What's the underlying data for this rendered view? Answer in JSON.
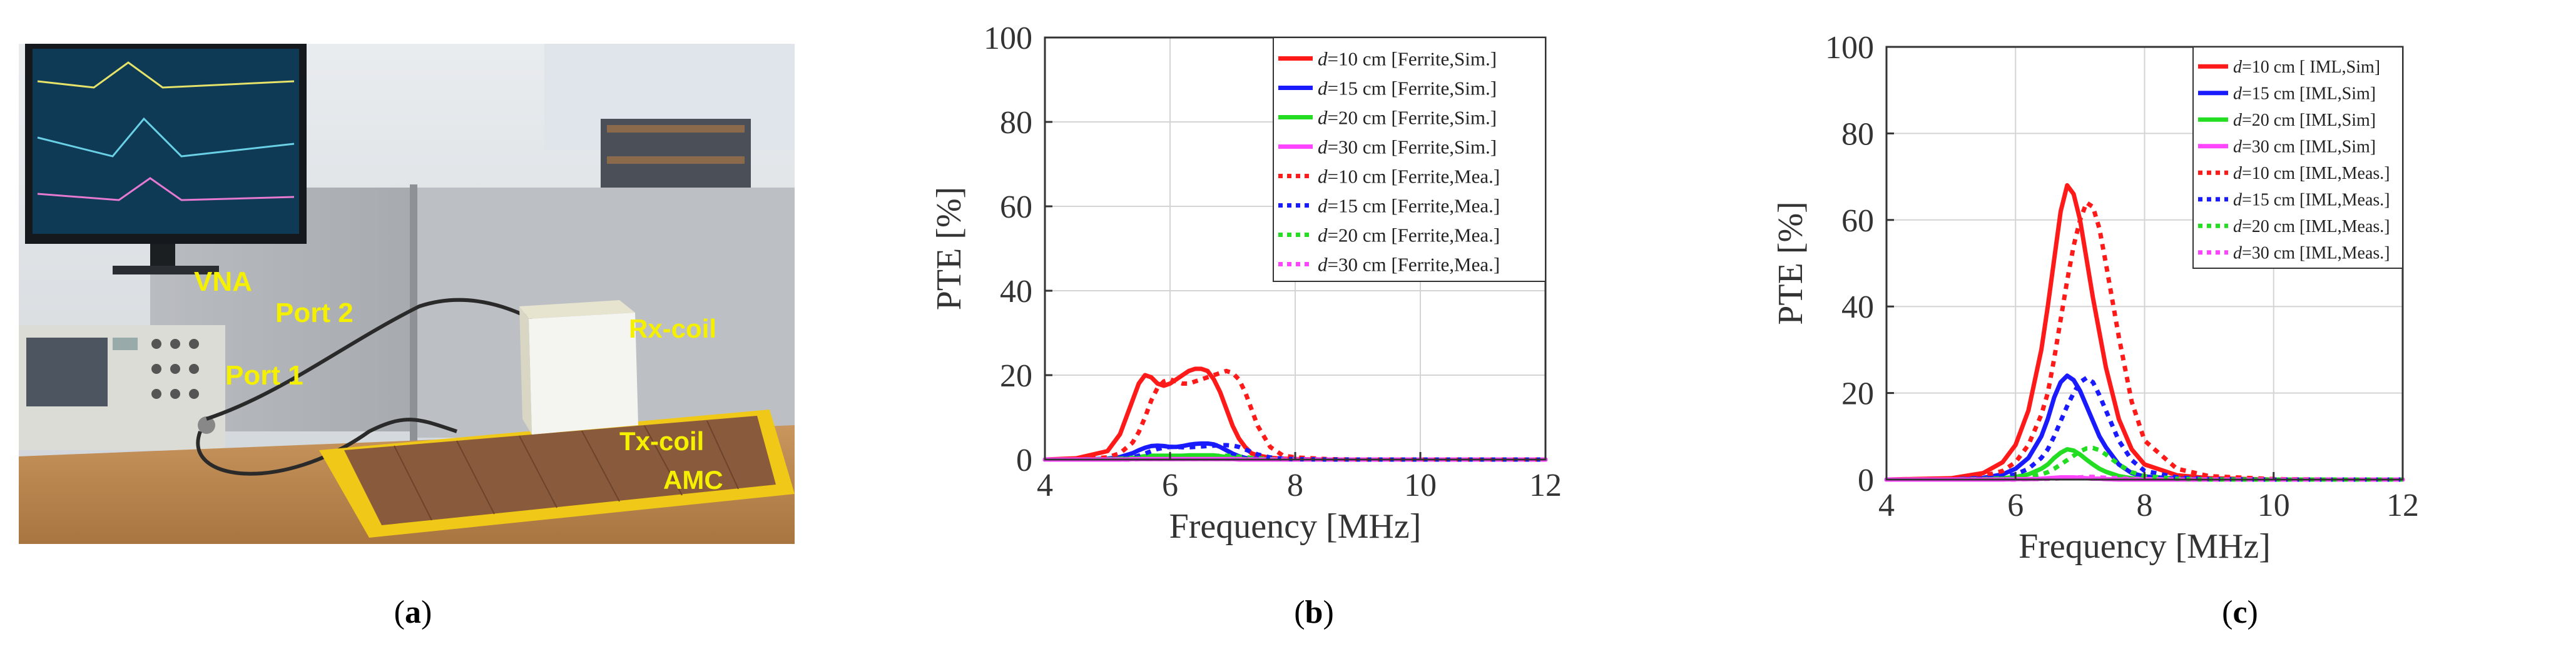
{
  "panel_a": {
    "labels": {
      "vna": "VNA",
      "port2": "Port 2",
      "port1": "Port 1",
      "rx": "Rx-coil",
      "tx": "Tx-coil",
      "amc": "AMC"
    }
  },
  "captions": {
    "a": "a",
    "b": "b",
    "c": "c"
  },
  "colors": {
    "red": "#ff1a1a",
    "blue": "#1a1aff",
    "green": "#22dd22",
    "magenta": "#ff44ff",
    "label_yellow": "#f5f000"
  },
  "chart_data": [
    {
      "id": "b",
      "type": "line",
      "xlabel": "Frequency [MHz]",
      "ylabel": "PTE [%]",
      "xlim": [
        4,
        12
      ],
      "ylim": [
        0,
        100
      ],
      "xticks": [
        4,
        6,
        8,
        10,
        12
      ],
      "yticks": [
        0,
        20,
        40,
        60,
        80,
        100
      ],
      "grid": true,
      "legend_position": "top-right",
      "x": [
        4.0,
        4.5,
        5.0,
        5.2,
        5.4,
        5.5,
        5.6,
        5.7,
        5.8,
        5.9,
        6.0,
        6.1,
        6.2,
        6.3,
        6.4,
        6.5,
        6.6,
        6.7,
        6.8,
        6.9,
        7.0,
        7.1,
        7.2,
        7.3,
        7.4,
        7.6,
        7.8,
        8.0,
        8.5,
        9.0,
        10.0,
        11.0,
        12.0
      ],
      "series": [
        {
          "name": "d=10 cm [Ferrite,Sim.]",
          "d": "d",
          "rest": "=10 cm [Ferrite,Sim.]",
          "color": "#ff1a1a",
          "dash": "solid",
          "width": 7,
          "values": [
            0,
            0.3,
            2,
            6,
            14,
            18,
            20,
            19.5,
            18,
            17.5,
            18,
            19,
            20,
            21,
            21.5,
            21.5,
            21,
            19,
            16,
            12,
            8,
            5,
            3,
            1.5,
            1,
            0.4,
            0.2,
            0.1,
            0,
            0,
            0,
            0,
            0
          ]
        },
        {
          "name": "d=15 cm [Ferrite,Sim.]",
          "d": "d",
          "rest": "=15 cm [Ferrite,Sim.]",
          "color": "#1a1aff",
          "dash": "solid",
          "width": 7,
          "values": [
            0,
            0,
            0.2,
            0.6,
            1.5,
            2.2,
            2.8,
            3.2,
            3.3,
            3.2,
            3.0,
            3.0,
            3.2,
            3.5,
            3.7,
            3.8,
            3.8,
            3.6,
            3.0,
            2.2,
            1.4,
            0.8,
            0.4,
            0.2,
            0.1,
            0,
            0,
            0,
            0,
            0,
            0,
            0,
            0
          ]
        },
        {
          "name": "d=20 cm [Ferrite,Sim.]",
          "d": "d",
          "rest": "=20 cm [Ferrite,Sim.]",
          "color": "#22dd22",
          "dash": "solid",
          "width": 7,
          "values": [
            0,
            0,
            0.1,
            0.2,
            0.4,
            0.6,
            0.8,
            0.9,
            0.9,
            0.9,
            0.9,
            0.9,
            0.9,
            1.0,
            1.0,
            1.0,
            1.0,
            1.0,
            0.8,
            0.6,
            0.4,
            0.2,
            0.1,
            0,
            0,
            0,
            0,
            0,
            0,
            0,
            0,
            0,
            0
          ]
        },
        {
          "name": "d=30 cm [Ferrite,Sim.]",
          "d": "d",
          "rest": "=30 cm [Ferrite,Sim.]",
          "color": "#ff44ff",
          "dash": "solid",
          "width": 7,
          "values": [
            0,
            0,
            0,
            0,
            0.1,
            0.1,
            0.1,
            0.1,
            0.1,
            0.1,
            0.1,
            0.1,
            0.1,
            0.1,
            0.1,
            0.1,
            0.1,
            0.1,
            0.1,
            0.1,
            0.1,
            0,
            0,
            0,
            0,
            0,
            0,
            0,
            0,
            0,
            0,
            0,
            0
          ]
        },
        {
          "name": "d=10 cm [Ferrite,Mea.]",
          "d": "d",
          "rest": "=10 cm [Ferrite,Mea.]",
          "color": "#ff1a1a",
          "dash": "dot",
          "width": 7,
          "values": [
            0,
            0.1,
            0.5,
            1.5,
            4,
            6.5,
            10,
            14,
            17,
            18.5,
            19,
            18.5,
            18,
            18,
            18.5,
            19,
            19.5,
            20,
            20.5,
            21,
            20.5,
            19,
            16,
            12,
            8,
            3,
            1,
            0.5,
            0.1,
            0,
            0,
            0,
            0
          ]
        },
        {
          "name": "d=15 cm [Ferrite,Mea.]",
          "d": "d",
          "rest": "=15 cm [Ferrite,Mea.]",
          "color": "#1a1aff",
          "dash": "dot",
          "width": 7,
          "values": [
            0,
            0,
            0,
            0.2,
            0.5,
            0.9,
            1.4,
            2.0,
            2.5,
            2.8,
            3.0,
            3.0,
            2.9,
            2.9,
            3.0,
            3.1,
            3.2,
            3.3,
            3.4,
            3.4,
            3.3,
            3.0,
            2.4,
            1.8,
            1.2,
            0.5,
            0.2,
            0.1,
            0,
            0,
            0,
            0,
            0
          ]
        },
        {
          "name": "d=20 cm [Ferrite,Mea.]",
          "d": "d",
          "rest": "=20 cm [Ferrite,Mea.]",
          "color": "#22dd22",
          "dash": "dot",
          "width": 7,
          "values": [
            0,
            0,
            0,
            0.1,
            0.2,
            0.3,
            0.4,
            0.6,
            0.7,
            0.8,
            0.8,
            0.8,
            0.8,
            0.8,
            0.8,
            0.8,
            0.9,
            0.9,
            0.9,
            0.9,
            0.8,
            0.7,
            0.6,
            0.4,
            0.3,
            0.1,
            0,
            0,
            0,
            0,
            0,
            0,
            0
          ]
        },
        {
          "name": "d=30 cm [Ferrite,Mea.]",
          "d": "d",
          "rest": "=30 cm [Ferrite,Mea.]",
          "color": "#ff44ff",
          "dash": "dot",
          "width": 7,
          "values": [
            0,
            0,
            0,
            0,
            0,
            0.1,
            0.1,
            0.1,
            0.1,
            0.1,
            0.1,
            0.1,
            0.1,
            0.1,
            0.1,
            0.1,
            0.1,
            0.1,
            0.1,
            0.1,
            0.1,
            0.1,
            0.1,
            0,
            0,
            0,
            0,
            0,
            0,
            0,
            0,
            0,
            0
          ]
        }
      ]
    },
    {
      "id": "c",
      "type": "line",
      "xlabel": "Frequency [MHz]",
      "ylabel": "PTE [%]",
      "xlim": [
        4,
        12
      ],
      "ylim": [
        0,
        100
      ],
      "xticks": [
        4,
        6,
        8,
        10,
        12
      ],
      "yticks": [
        0,
        20,
        40,
        60,
        80,
        100
      ],
      "grid": true,
      "legend_position": "top-right",
      "x": [
        4.0,
        5.0,
        5.5,
        5.8,
        6.0,
        6.2,
        6.4,
        6.5,
        6.6,
        6.7,
        6.8,
        6.9,
        7.0,
        7.1,
        7.2,
        7.3,
        7.4,
        7.6,
        7.8,
        8.0,
        8.5,
        9.0,
        10.0,
        11.0,
        12.0
      ],
      "series": [
        {
          "name": "d=10 cm [ IML,Sim]",
          "d": "d",
          "rest": "=10 cm [ IML,Sim]",
          "color": "#ff1a1a",
          "dash": "solid",
          "width": 7,
          "values": [
            0,
            0.3,
            1.5,
            4,
            8,
            16,
            30,
            40,
            51,
            62,
            68,
            66,
            60,
            51,
            42,
            34,
            26,
            14,
            7,
            3.5,
            1,
            0.3,
            0,
            0,
            0
          ]
        },
        {
          "name": "d=15 cm [IML,Sim]",
          "d": "d",
          "rest": "=15 cm [IML,Sim]",
          "color": "#1a1aff",
          "dash": "solid",
          "width": 7,
          "values": [
            0,
            0,
            0.4,
            1.2,
            2.5,
            5,
            10,
            14,
            19,
            22.5,
            24,
            23,
            20.5,
            17,
            13.5,
            10,
            7.5,
            3.5,
            1.5,
            0.7,
            0.2,
            0,
            0,
            0,
            0
          ]
        },
        {
          "name": "d=20 cm [IML,Sim]",
          "d": "d",
          "rest": "=20 cm [IML,Sim]",
          "color": "#22dd22",
          "dash": "solid",
          "width": 7,
          "values": [
            0,
            0,
            0.1,
            0.3,
            0.6,
            1.2,
            2.5,
            3.5,
            5,
            6.2,
            7,
            6.7,
            5.8,
            4.6,
            3.5,
            2.5,
            1.8,
            0.8,
            0.3,
            0.1,
            0,
            0,
            0,
            0,
            0
          ]
        },
        {
          "name": "d=30 cm [IML,Sim]",
          "d": "d",
          "rest": "=30 cm [IML,Sim]",
          "color": "#ff44ff",
          "dash": "solid",
          "width": 7,
          "values": [
            0,
            0,
            0,
            0,
            0.1,
            0.1,
            0.2,
            0.3,
            0.4,
            0.5,
            0.5,
            0.5,
            0.4,
            0.3,
            0.2,
            0.2,
            0.1,
            0,
            0,
            0,
            0,
            0,
            0,
            0,
            0
          ]
        },
        {
          "name": "d=10 cm [IML,Meas.]",
          "d": "d",
          "rest": "=10 cm [IML,Meas.]",
          "color": "#ff1a1a",
          "dash": "dot",
          "width": 7,
          "values": [
            0,
            0.1,
            0.8,
            2,
            4,
            8,
            15,
            20,
            28,
            37,
            46,
            54,
            60,
            64,
            63,
            58,
            50,
            33,
            18,
            9,
            2.5,
            0.8,
            0.1,
            0,
            0
          ]
        },
        {
          "name": "d=15 cm [IML,Meas.]",
          "d": "d",
          "rest": "=15 cm [IML,Meas.]",
          "color": "#1a1aff",
          "dash": "dot",
          "width": 7,
          "values": [
            0,
            0,
            0.2,
            0.6,
            1.2,
            2.5,
            5,
            7,
            10,
            13.5,
            17,
            20,
            22.5,
            23.5,
            22.5,
            19.5,
            16,
            9,
            4.5,
            2,
            0.5,
            0.1,
            0,
            0,
            0
          ]
        },
        {
          "name": "d=20 cm [IML,Meas.]",
          "d": "d",
          "rest": "=20 cm [IML,Meas.]",
          "color": "#22dd22",
          "dash": "dot",
          "width": 7,
          "values": [
            0,
            0,
            0,
            0.2,
            0.3,
            0.6,
            1.2,
            1.7,
            2.5,
            3.5,
            4.5,
            5.5,
            6.5,
            7.2,
            7.3,
            6.8,
            5.8,
            3.5,
            1.7,
            0.8,
            0.2,
            0,
            0,
            0,
            0
          ]
        },
        {
          "name": "d=30 cm [IML,Meas.]",
          "d": "d",
          "rest": "=30 cm [IML,Meas.]",
          "color": "#ff44ff",
          "dash": "dot",
          "width": 7,
          "values": [
            0,
            0,
            0,
            0,
            0,
            0.1,
            0.1,
            0.2,
            0.2,
            0.3,
            0.4,
            0.5,
            0.5,
            0.6,
            0.6,
            0.5,
            0.4,
            0.3,
            0.1,
            0.1,
            0,
            0,
            0,
            0,
            0
          ]
        }
      ]
    }
  ]
}
